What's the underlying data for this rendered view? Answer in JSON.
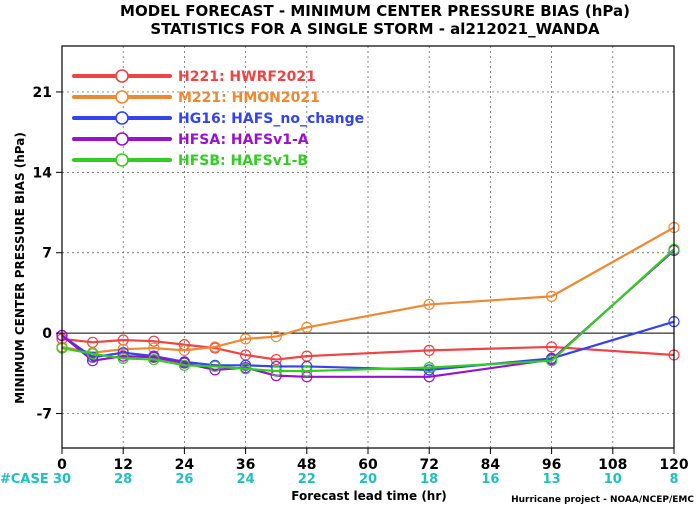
{
  "chart_data": {
    "type": "line",
    "title": "MODEL FORECAST - MINIMUM CENTER PRESSURE BIAS (hPa)",
    "subtitle": "STATISTICS FOR A SINGLE STORM - al212021_WANDA",
    "xlabel": "Forecast lead time (hr)",
    "ylabel": "MINIMUM CENTER PRESSURE BIAS (hPa)",
    "xlim": [
      0,
      120
    ],
    "ylim": [
      -10,
      25
    ],
    "x_ticks": [
      0,
      12,
      24,
      36,
      48,
      60,
      72,
      84,
      96,
      108,
      120
    ],
    "y_ticks": [
      -7,
      0,
      7,
      14,
      21
    ],
    "zero_line": 0,
    "grid": "dashed",
    "legend_position": "top-left",
    "case_label": "#CASE",
    "case_counts": [
      {
        "x": 0,
        "n": "30"
      },
      {
        "x": 12,
        "n": "28"
      },
      {
        "x": 24,
        "n": "26"
      },
      {
        "x": 36,
        "n": "24"
      },
      {
        "x": 48,
        "n": "22"
      },
      {
        "x": 60,
        "n": "20"
      },
      {
        "x": 72,
        "n": "18"
      },
      {
        "x": 84,
        "n": "16"
      },
      {
        "x": 96,
        "n": "13"
      },
      {
        "x": 108,
        "n": "10"
      },
      {
        "x": 120,
        "n": "8"
      }
    ],
    "series": [
      {
        "name": "H221: HWRF2021",
        "color": "#ee4444",
        "x": [
          0,
          6,
          12,
          18,
          24,
          30,
          36,
          42,
          48,
          72,
          96,
          120
        ],
        "y": [
          -0.5,
          -0.8,
          -0.6,
          -0.7,
          -1.0,
          -1.3,
          -1.9,
          -2.3,
          -2.0,
          -1.5,
          -1.2,
          -1.9
        ]
      },
      {
        "name": "M221: HMON2021",
        "color": "#ee8833",
        "x": [
          0,
          6,
          12,
          18,
          24,
          30,
          36,
          42,
          48,
          72,
          96,
          120
        ],
        "y": [
          -1.2,
          -1.7,
          -1.4,
          -1.3,
          -1.5,
          -1.2,
          -0.5,
          -0.3,
          0.5,
          2.5,
          3.2,
          9.2
        ]
      },
      {
        "name": "HG16: HAFS_no_change",
        "color": "#3344ee",
        "x": [
          0,
          6,
          12,
          18,
          24,
          30,
          36,
          42,
          48,
          72,
          96,
          120
        ],
        "y": [
          -0.2,
          -2.1,
          -1.7,
          -2.0,
          -2.5,
          -2.8,
          -2.8,
          -2.9,
          -2.9,
          -3.2,
          -2.2,
          1.0
        ]
      },
      {
        "name": "HFSA: HAFSv1-A",
        "color": "#9911cc",
        "x": [
          0,
          6,
          12,
          18,
          24,
          30,
          36,
          42,
          48,
          72,
          96,
          120
        ],
        "y": [
          -0.2,
          -2.4,
          -2.0,
          -2.1,
          -2.6,
          -3.2,
          -3.0,
          -3.7,
          -3.8,
          -3.8,
          -2.3,
          7.2
        ]
      },
      {
        "name": "HFSB: HAFSv1-B",
        "color": "#33cc22",
        "x": [
          0,
          6,
          12,
          18,
          24,
          30,
          36,
          42,
          48,
          72,
          96,
          120
        ],
        "y": [
          -1.3,
          -1.8,
          -2.2,
          -2.3,
          -2.8,
          -2.9,
          -3.1,
          -3.3,
          -3.3,
          -3.0,
          -2.4,
          7.3
        ]
      }
    ],
    "credit": "Hurricane project - NOAA/NCEP/EMC"
  }
}
